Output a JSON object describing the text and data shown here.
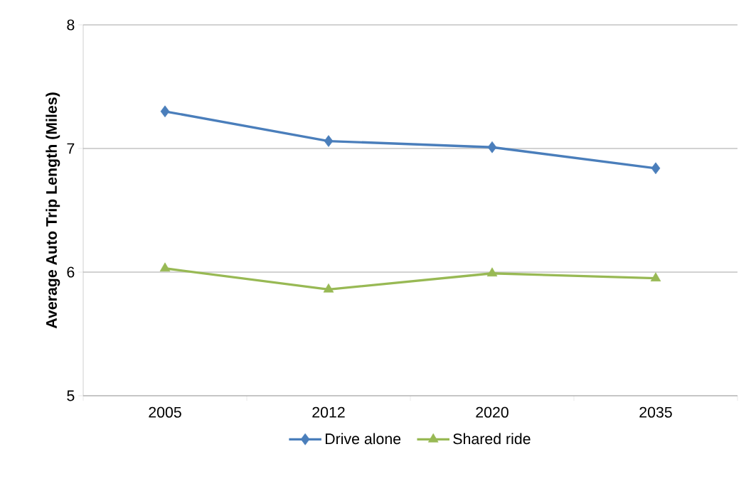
{
  "chart_data": {
    "type": "line",
    "ylabel": "Average Auto Trip Length (Miles)",
    "categories": [
      "2005",
      "2012",
      "2020",
      "2035"
    ],
    "series": [
      {
        "name": "Drive alone",
        "color": "#4a7ebb",
        "marker": "diamond",
        "values": [
          7.3,
          7.06,
          7.01,
          6.84
        ]
      },
      {
        "name": "Shared ride",
        "color": "#98b954",
        "marker": "triangle",
        "values": [
          6.03,
          5.86,
          5.99,
          5.95
        ]
      }
    ],
    "ylim": [
      5,
      8
    ],
    "yticks": [
      5,
      6,
      7,
      8
    ],
    "grid": "y",
    "legend": "bottom",
    "line_style": "solid"
  }
}
